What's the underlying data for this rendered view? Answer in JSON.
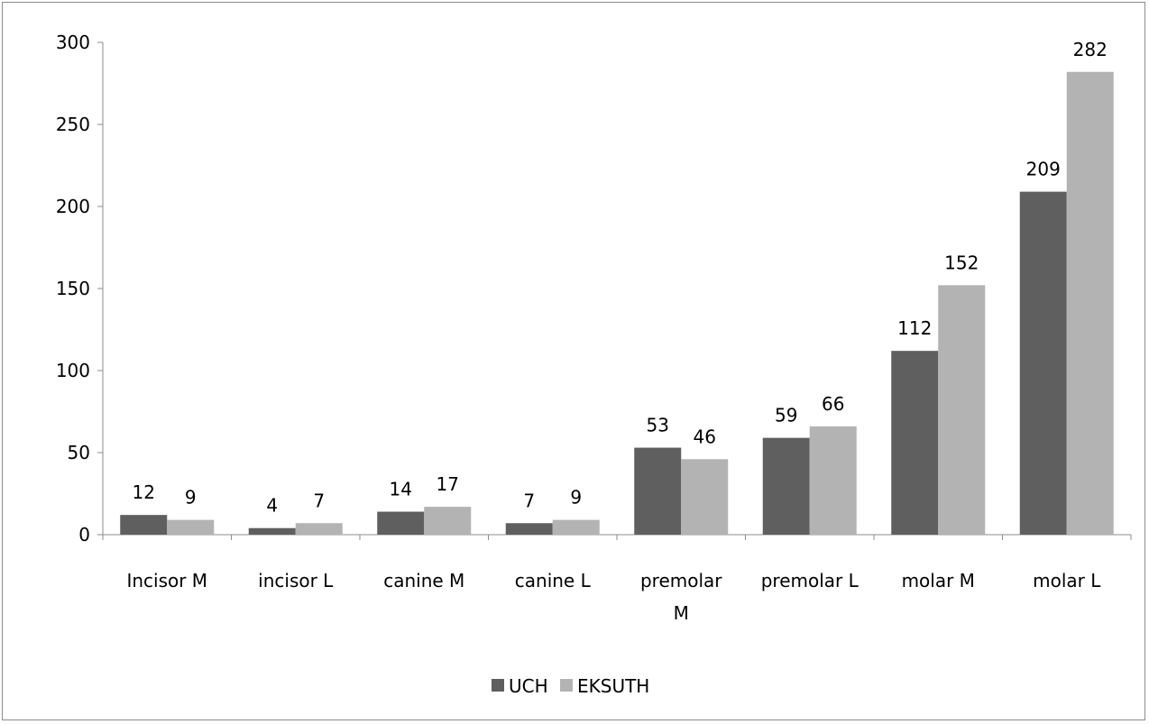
{
  "chart_data": {
    "type": "bar",
    "categories": [
      "Incisor M",
      "incisor L",
      "canine M",
      "canine L",
      "premolar M",
      "premolar L",
      "molar M",
      "molar L"
    ],
    "series": [
      {
        "name": "UCH",
        "values": [
          12,
          4,
          14,
          7,
          53,
          59,
          112,
          209
        ],
        "color": "#5f5f5f"
      },
      {
        "name": "EKSUTH",
        "values": [
          9,
          7,
          17,
          9,
          46,
          66,
          152,
          282
        ],
        "color": "#b3b3b3"
      }
    ],
    "ylim": [
      0,
      300
    ],
    "yticks": [
      0,
      50,
      100,
      150,
      200,
      250,
      300
    ],
    "grid": false,
    "legend": "bottom",
    "title": "",
    "xlabel": "",
    "ylabel": ""
  }
}
